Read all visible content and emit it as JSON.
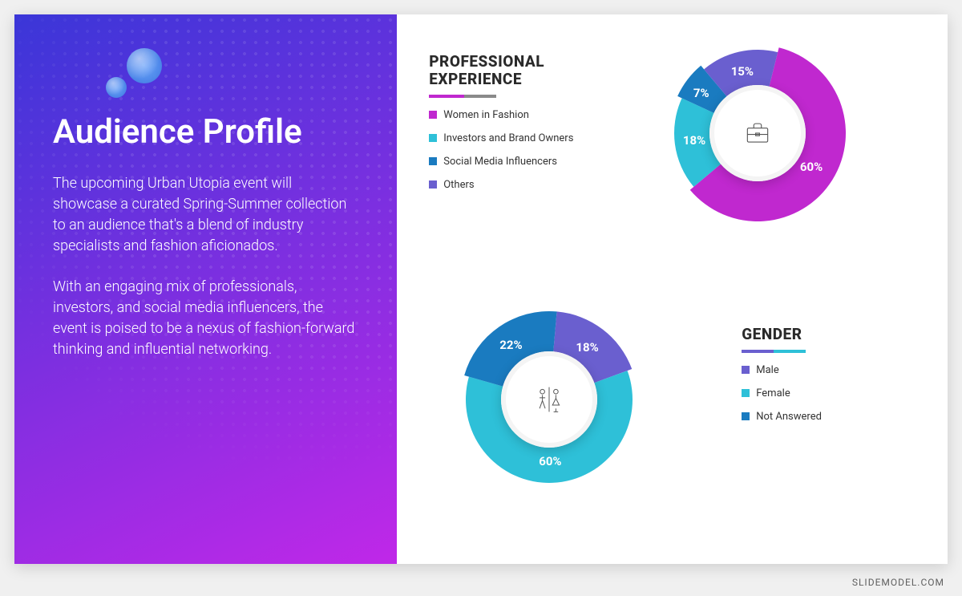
{
  "footer": "SLIDEMODEL.COM",
  "left_panel": {
    "title": "Audience Profile",
    "para1": "The upcoming Urban Utopia event will showcase a curated Spring-Summer collection to an audience that's a blend of industry specialists and fashion aficionados.",
    "para2": "With an engaging mix of professionals, investors, and social media influencers, the event is poised to be a nexus of fashion-forward thinking and influential networking.",
    "bg_gradient_from": "#3a36d8",
    "bg_gradient_to": "#c028e8"
  },
  "chart_experience": {
    "type": "donut",
    "title": "PROFESSIONAL\nEXPERIENCE",
    "underline_colors": [
      "#c028cf",
      "#8a8a8a"
    ],
    "underline_widths": [
      44,
      40
    ],
    "center_icon": "briefcase",
    "slices": [
      {
        "label": "Women in Fashion",
        "value": 60,
        "color": "#c028cf"
      },
      {
        "label": "Investors and Brand Owners",
        "value": 18,
        "color": "#2ec0d8"
      },
      {
        "label": "Social Media Influencers",
        "value": 7,
        "color": "#1a7bc0"
      },
      {
        "label": "Others",
        "value": 15,
        "color": "#6a5fcf"
      }
    ],
    "outer_radius": 110,
    "inner_radius": 52,
    "bg": "#ffffff",
    "label_fontsize": 15
  },
  "chart_gender": {
    "type": "donut",
    "title": "GENDER",
    "underline_colors": [
      "#6a5fcf",
      "#2ec0d8"
    ],
    "underline_widths": [
      40,
      40
    ],
    "center_icon": "gender",
    "slices": [
      {
        "label": "Male",
        "value": 18,
        "color": "#6a5fcf"
      },
      {
        "label": "Female",
        "value": 60,
        "color": "#2ec0d8"
      },
      {
        "label": "Not Answered",
        "value": 22,
        "color": "#1a7bc0"
      }
    ],
    "outer_radius": 110,
    "inner_radius": 52,
    "bg": "#ffffff",
    "label_fontsize": 15
  }
}
